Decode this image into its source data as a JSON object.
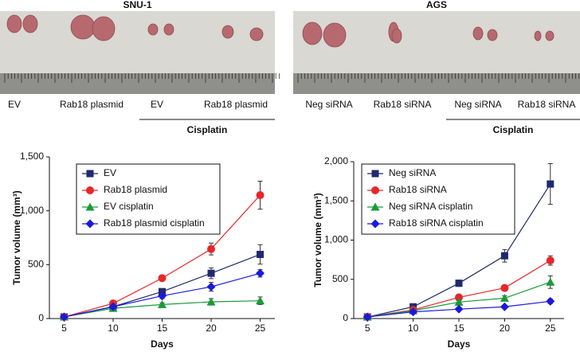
{
  "chart_data": [
    {
      "type": "line",
      "title": "SNU-1",
      "photo_labels": [
        "EV",
        "Rab18 plasmid",
        "EV",
        "Rab18 plasmid"
      ],
      "bracket_label": "Cisplatin",
      "x_label": "Days",
      "y_label": "Tumor volume (mm³)",
      "x": [
        5,
        10,
        15,
        20,
        25
      ],
      "xlim": [
        3.5,
        26.5
      ],
      "xticks": [
        5,
        10,
        15,
        20,
        25
      ],
      "ylim": [
        0,
        1500
      ],
      "yticks": [
        0,
        500,
        {
          "value": 1000,
          "label": "1,000"
        },
        {
          "value": 1500,
          "label": "1,500"
        }
      ],
      "legend": "upper left",
      "series": [
        {
          "name": "EV",
          "color": "#1f2a6e",
          "marker": "square",
          "values": [
            15,
            110,
            250,
            420,
            595
          ],
          "errors": [
            5,
            15,
            25,
            50,
            90
          ]
        },
        {
          "name": "Rab18 plasmid",
          "color": "#e8262a",
          "marker": "circle",
          "values": [
            15,
            140,
            375,
            645,
            1145
          ],
          "errors": [
            5,
            15,
            20,
            55,
            130
          ]
        },
        {
          "name": "EV cisplatin",
          "color": "#1a9a3a",
          "marker": "triangle",
          "values": [
            15,
            95,
            130,
            155,
            165
          ],
          "errors": [
            5,
            10,
            15,
            30,
            35
          ]
        },
        {
          "name": "Rab18 plasmid cisplatin",
          "color": "#1a1adc",
          "marker": "diamond",
          "values": [
            15,
            110,
            210,
            295,
            420
          ],
          "errors": [
            5,
            15,
            25,
            40,
            35
          ]
        }
      ]
    },
    {
      "type": "line",
      "title": "AGS",
      "photo_labels": [
        "Neg siRNA",
        "Rab18 siRNA",
        "Neg siRNA",
        "Rab18 siRNA"
      ],
      "bracket_label": "Cisplatin",
      "x_label": "Days",
      "y_label": "Tumor volume (mm³)",
      "x": [
        5,
        10,
        15,
        20,
        25
      ],
      "xlim": [
        3.5,
        26.5
      ],
      "xticks": [
        5,
        10,
        15,
        20,
        25
      ],
      "ylim": [
        0,
        2000
      ],
      "yticks": [
        0,
        500,
        {
          "value": 1000,
          "label": "1,000"
        },
        {
          "value": 1500,
          "label": "1,500"
        },
        {
          "value": 2000,
          "label": "2,000"
        }
      ],
      "legend": "upper left",
      "series": [
        {
          "name": "Neg siRNA",
          "color": "#1f2a6e",
          "marker": "square",
          "values": [
            20,
            150,
            450,
            800,
            1715
          ],
          "errors": [
            5,
            20,
            40,
            80,
            260
          ]
        },
        {
          "name": "Rab18 siRNA",
          "color": "#e8262a",
          "marker": "circle",
          "values": [
            20,
            110,
            270,
            390,
            740
          ],
          "errors": [
            5,
            10,
            20,
            20,
            60
          ]
        },
        {
          "name": "Neg siRNA cisplatin",
          "color": "#1a9a3a",
          "marker": "triangle",
          "values": [
            20,
            100,
            210,
            260,
            465
          ],
          "errors": [
            5,
            10,
            20,
            30,
            80
          ]
        },
        {
          "name": "Rab18 siRNA cisplatin",
          "color": "#1a1adc",
          "marker": "diamond",
          "values": [
            20,
            85,
            120,
            150,
            220
          ],
          "errors": [
            5,
            10,
            15,
            15,
            30
          ]
        }
      ]
    }
  ]
}
